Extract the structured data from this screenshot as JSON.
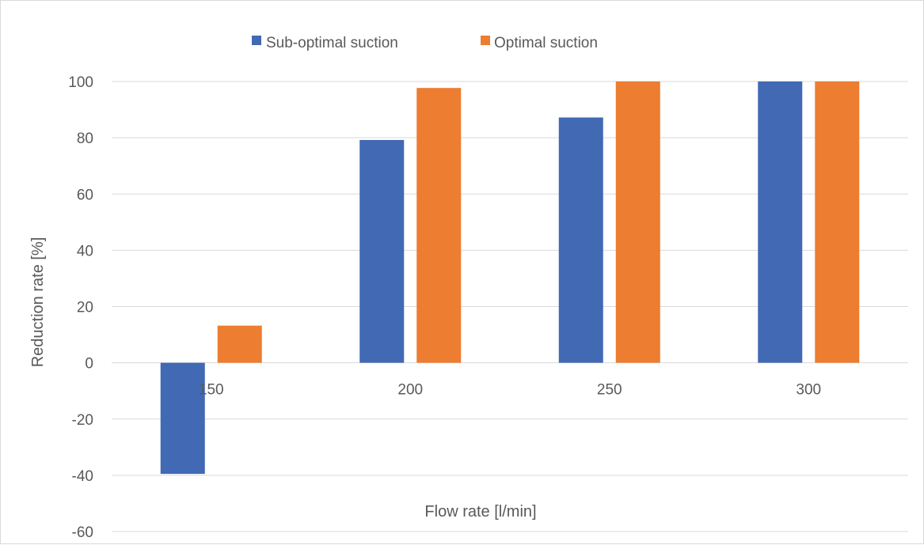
{
  "chart_data": {
    "type": "bar",
    "categories": [
      "150",
      "200",
      "250",
      "300"
    ],
    "series": [
      {
        "name": "Sub-optimal suction",
        "color": "#4169b4",
        "values": [
          -39.5,
          79.2,
          87.2,
          100
        ]
      },
      {
        "name": "Optimal suction",
        "color": "#ed7d31",
        "values": [
          13.2,
          97.7,
          100,
          100
        ]
      }
    ],
    "title": "",
    "xlabel": "Flow rate [l/min]",
    "ylabel": "Reduction rate [%]",
    "ylim": [
      -60,
      100
    ],
    "yticks": [
      "-60",
      "-40",
      "-20",
      "0",
      "20",
      "40",
      "60",
      "80",
      "100"
    ],
    "grid": true,
    "legend_position": "top"
  }
}
